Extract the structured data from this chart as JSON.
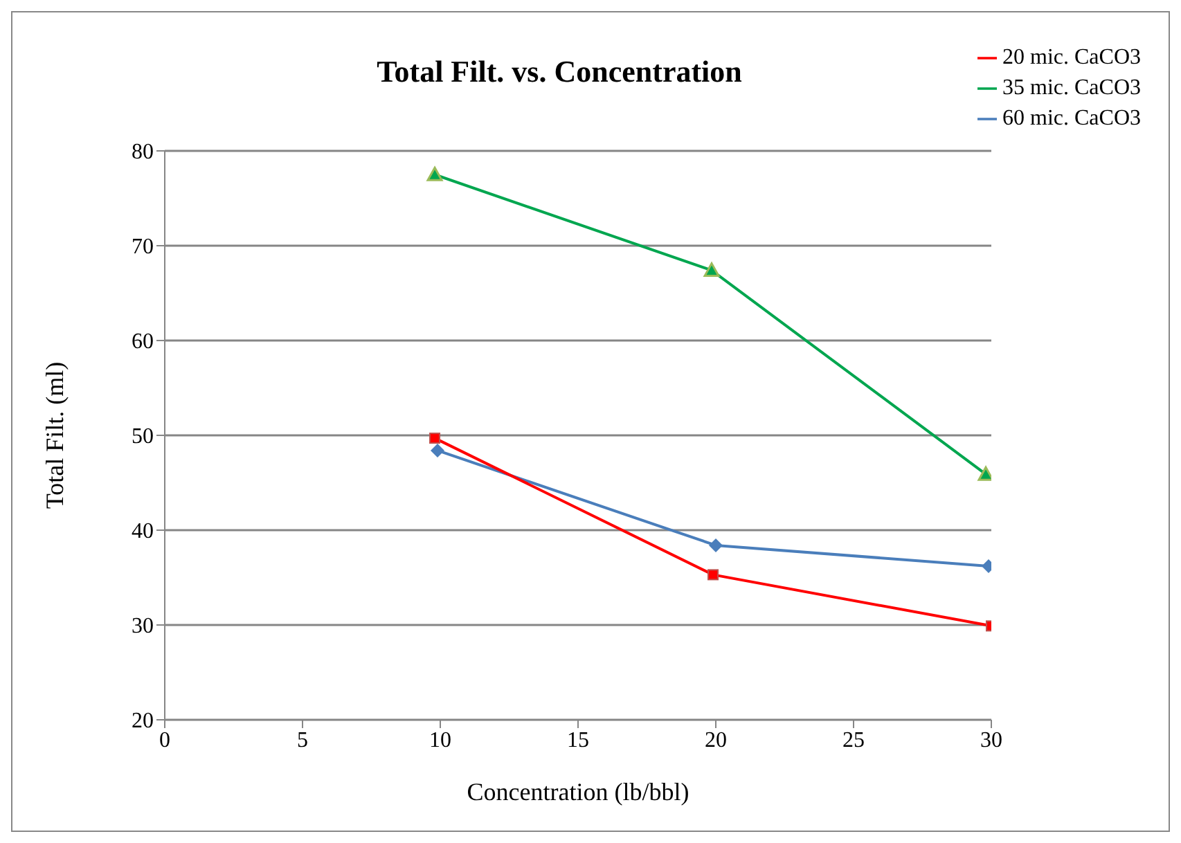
{
  "chart_data": {
    "type": "line",
    "title": "Total Filt. vs. Concentration",
    "xlabel": "Concentration (lb/bbl)",
    "ylabel": "Total Filt. (ml)",
    "series": [
      {
        "name": "60 mic. CaCO3",
        "color": "#4a7ebb",
        "marker": "diamond",
        "x": [
          9.9,
          20,
          29.9
        ],
        "values": [
          48.4,
          38.4,
          36.2
        ]
      },
      {
        "name": "20 mic. CaCO3",
        "color": "#ff0000",
        "marker": "square",
        "x": [
          9.8,
          19.9,
          30
        ],
        "values": [
          49.7,
          35.3,
          29.9
        ]
      },
      {
        "name": "35 mic. CaCO3",
        "color": "#00a64f",
        "marker": "triangle",
        "x": [
          9.8,
          19.85,
          29.8
        ],
        "values": [
          77.5,
          67.4,
          45.9
        ]
      }
    ],
    "xlim": [
      0,
      30
    ],
    "xticks": [
      0,
      5,
      10,
      15,
      20,
      25,
      30
    ],
    "ylim": [
      20,
      80
    ],
    "yticks": [
      20,
      30,
      40,
      50,
      60,
      70,
      80
    ],
    "grid": "y",
    "legend": "top right",
    "line_style": "solid"
  }
}
